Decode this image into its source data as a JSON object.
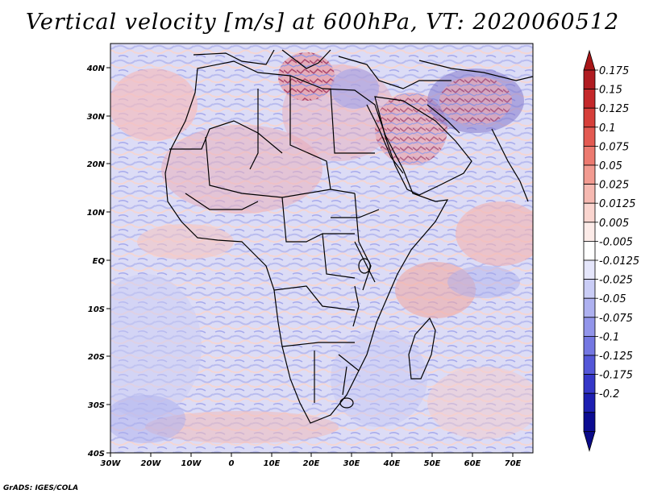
{
  "title": "Vertical velocity [m/s] at 600hPa, VT: 2020060512",
  "footer": "GrADS: IGES/COLA",
  "map": {
    "lon_labels": [
      "30W",
      "20W",
      "10W",
      "0",
      "10E",
      "20E",
      "30E",
      "40E",
      "50E",
      "60E",
      "70E"
    ],
    "lat_labels": [
      "40N",
      "30N",
      "20N",
      "10N",
      "EQ",
      "10S",
      "20S",
      "30S",
      "40S"
    ],
    "lon_range": [
      -30,
      75
    ],
    "lat_range": [
      -40,
      45
    ]
  },
  "colorbar": {
    "labels": [
      "0.175",
      "0.15",
      "0.125",
      "0.1",
      "0.075",
      "0.05",
      "0.025",
      "0.0125",
      "0.005",
      "-0.005",
      "-0.0125",
      "-0.025",
      "-0.05",
      "-0.075",
      "-0.1",
      "-0.125",
      "-0.175",
      "-0.2"
    ],
    "colors": [
      "#b01c22",
      "#c4282a",
      "#d63f3a",
      "#e35a52",
      "#ec7a70",
      "#f29b91",
      "#f6b9b1",
      "#fad5cf",
      "#fcebe8",
      "#ffffff",
      "#e5e6fb",
      "#cacdf6",
      "#aeb1f0",
      "#9295ea",
      "#7477e2",
      "#5457d8",
      "#3537c8",
      "#1d1fb2",
      "#0c0c92"
    ],
    "tip_top_color": "#a81618",
    "tip_bottom_color": "#0a0a88"
  }
}
